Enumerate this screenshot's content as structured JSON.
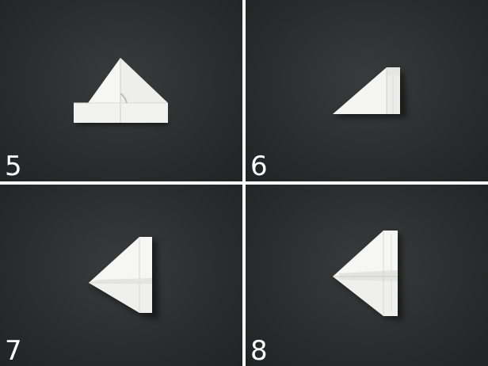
{
  "steps": [
    {
      "number": "5"
    },
    {
      "number": "6"
    },
    {
      "number": "7"
    },
    {
      "number": "8"
    }
  ],
  "colors": {
    "background": "#2c2d2e",
    "paper": "#f4f4f2",
    "divider": "#ffffff",
    "number": "#ffffff"
  }
}
